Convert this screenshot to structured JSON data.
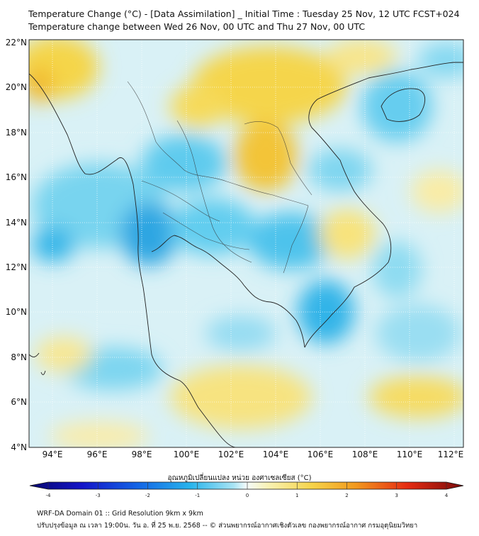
{
  "title": {
    "line1": "Temperature Change (°C) - [Data Assimilation] _ Initial Time : Tuesday 25 Nov, 12 UTC FCST+024",
    "line2": "Temperature change between Wed 26 Nov, 00 UTC and Thu 27 Nov, 00 UTC"
  },
  "axes": {
    "lat_labels": [
      "22°N",
      "20°N",
      "18°N",
      "16°N",
      "14°N",
      "12°N",
      "10°N",
      "8°N",
      "6°N",
      "4°N"
    ],
    "lon_labels": [
      "94°E",
      "96°E",
      "98°E",
      "100°E",
      "102°E",
      "104°E",
      "106°E",
      "108°E",
      "110°E",
      "112°E"
    ]
  },
  "colorbar": {
    "title": "อุณหภูมิเปลี่ยนแปลง หน่วย องศาเซลเซียส (°C)",
    "ticks": [
      "-4",
      "-3",
      "-2",
      "-1",
      "0",
      "1",
      "2",
      "3",
      "4"
    ],
    "min": -4,
    "max": 4
  },
  "footer": {
    "line1": "WRF-DA Domain 01 :: Grid Resolution 9km x 9km",
    "line2": "ปรับปรุงข้อมูล ณ เวลา 19:00น. วัน อ. ที่ 25 พ.ย. 2568 -- © ส่วนพยากรณ์อากาศเชิงตัวเลข กองพยากรณ์อากาศ กรมอุตุนิยมวิทยา"
  },
  "colors": {
    "warm": "#f5d24a",
    "cool": "#4fc8ee",
    "neutral": "#dff3f7",
    "coast": "#222222"
  }
}
